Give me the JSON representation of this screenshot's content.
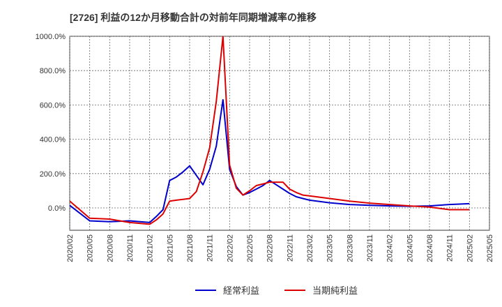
{
  "chart_data": {
    "type": "line",
    "title": "[2726]  利益の12か月移動合計の対前年同期増減率の推移",
    "xlabel": "",
    "ylabel": "",
    "ylim": [
      -130,
      1000
    ],
    "yticks": [
      0,
      200,
      400,
      600,
      800,
      1000
    ],
    "ytick_labels": [
      "0.0%",
      "200.0%",
      "400.0%",
      "600.0%",
      "800.0%",
      "1000.0%"
    ],
    "x_start": "2020/02",
    "x_end": "2025/05",
    "xtick_labels": [
      "2020/02",
      "2020/05",
      "2020/08",
      "2020/11",
      "2021/02",
      "2021/05",
      "2021/08",
      "2021/11",
      "2022/02",
      "2022/05",
      "2022/08",
      "2022/11",
      "2023/02",
      "2023/05",
      "2023/08",
      "2023/11",
      "2024/02",
      "2024/05",
      "2024/08",
      "2024/11",
      "2025/02",
      "2025/05"
    ],
    "grid": true,
    "legend_position": "bottom-center",
    "series": [
      {
        "name": "経常利益",
        "color": "#0000cc",
        "x_months": [
          0,
          3,
          6,
          9,
          12,
          13,
          14,
          15,
          16,
          17,
          18,
          19,
          20,
          21,
          22,
          23,
          24,
          25,
          26,
          27,
          28,
          29,
          30,
          31,
          32,
          33,
          34,
          35,
          36,
          39,
          42,
          45,
          48,
          51,
          54,
          57,
          60
        ],
        "values": [
          15,
          -75,
          -80,
          -75,
          -85,
          -50,
          -10,
          160,
          180,
          210,
          245,
          190,
          135,
          225,
          360,
          630,
          225,
          125,
          75,
          90,
          110,
          130,
          160,
          135,
          110,
          85,
          65,
          55,
          45,
          30,
          20,
          15,
          12,
          10,
          12,
          20,
          25
        ]
      },
      {
        "name": "当期純利益",
        "color": "#dd0000",
        "x_months": [
          0,
          3,
          6,
          9,
          12,
          13,
          14,
          15,
          16,
          17,
          18,
          19,
          20,
          21,
          22,
          23,
          24,
          25,
          26,
          27,
          28,
          29,
          30,
          31,
          32,
          33,
          34,
          35,
          36,
          39,
          42,
          45,
          48,
          51,
          54,
          57,
          60
        ],
        "values": [
          40,
          -60,
          -65,
          -85,
          -95,
          -70,
          -35,
          40,
          45,
          50,
          55,
          95,
          210,
          350,
          620,
          1000,
          250,
          115,
          75,
          100,
          130,
          140,
          150,
          150,
          150,
          110,
          90,
          75,
          70,
          55,
          40,
          28,
          20,
          12,
          5,
          -10,
          -10
        ]
      }
    ]
  }
}
